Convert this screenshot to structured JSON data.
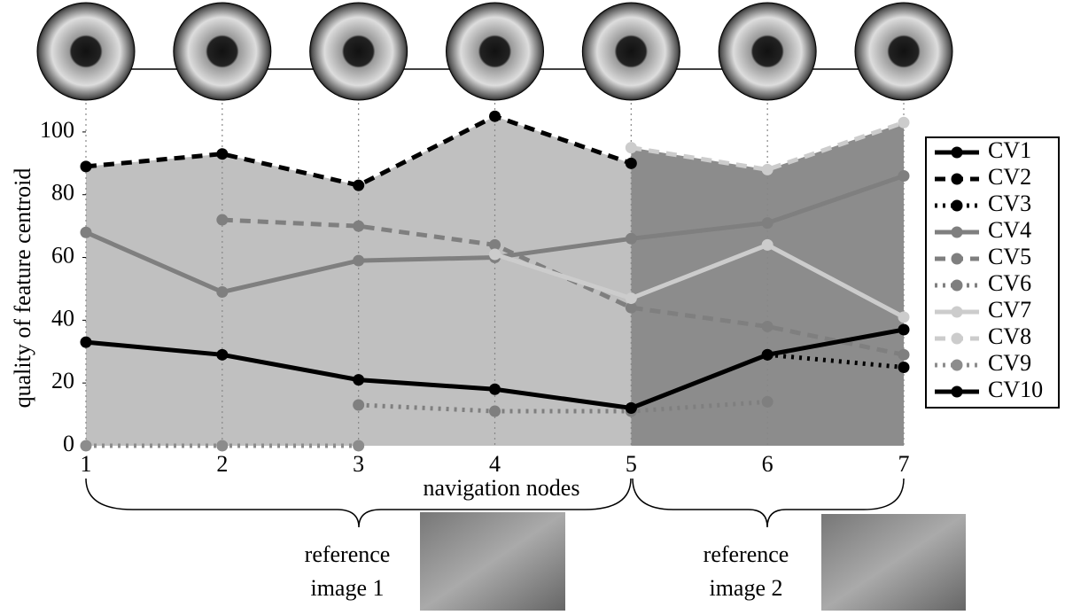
{
  "chart_data": {
    "type": "line",
    "ylabel": "quality of feature centroid",
    "xlabel": "navigation nodes",
    "xlim": [
      1,
      7
    ],
    "xticks": [
      1,
      2,
      3,
      4,
      5,
      6,
      7
    ],
    "ylim": [
      0,
      110
    ],
    "yticks": [
      0,
      20,
      40,
      60,
      80,
      100
    ],
    "legend": "right",
    "series": [
      {
        "name": "CV1",
        "color": "#000000",
        "style": "solid",
        "x": [
          1,
          2,
          3,
          4,
          5
        ],
        "values": [
          33,
          29,
          21,
          18,
          12
        ]
      },
      {
        "name": "CV2",
        "color": "#000000",
        "style": "dashed",
        "area_fill": "#c0c0c0",
        "x": [
          1,
          2,
          3,
          4,
          5
        ],
        "values": [
          89,
          93,
          83,
          105,
          90
        ]
      },
      {
        "name": "CV3",
        "color": "#000000",
        "style": "dotted",
        "x": [
          6,
          7
        ],
        "values": [
          29,
          25
        ]
      },
      {
        "name": "CV4",
        "color": "#7f7f7f",
        "style": "solid",
        "x": [
          1,
          2,
          3,
          4,
          5,
          6,
          7
        ],
        "values": [
          68,
          49,
          59,
          60,
          66,
          71,
          86
        ]
      },
      {
        "name": "CV5",
        "color": "#7f7f7f",
        "style": "dashed",
        "x": [
          2,
          3,
          4,
          5,
          6,
          7
        ],
        "values": [
          72,
          70,
          64,
          44,
          38,
          29
        ]
      },
      {
        "name": "CV6",
        "color": "#7f7f7f",
        "style": "dotted",
        "x": [
          3,
          4,
          5,
          6
        ],
        "values": [
          13,
          11,
          11,
          14
        ]
      },
      {
        "name": "CV7",
        "color": "#cccccc",
        "style": "solid",
        "x": [
          4,
          5,
          6,
          7
        ],
        "values": [
          61,
          47,
          64,
          41
        ]
      },
      {
        "name": "CV8",
        "color": "#cccccc",
        "style": "dashed",
        "area_fill": "#8c8c8c",
        "x": [
          5,
          6,
          7
        ],
        "values": [
          95,
          88,
          103
        ]
      },
      {
        "name": "CV9",
        "color": "#8c8c8c",
        "style": "dotted",
        "x": [
          1,
          2,
          3
        ],
        "values": [
          0,
          0,
          0
        ]
      },
      {
        "name": "CV10",
        "color": "#000000",
        "style": "solid",
        "x": [
          5,
          6,
          7
        ],
        "values": [
          12,
          29,
          37
        ]
      }
    ],
    "annotations": [
      "reference image 1",
      "reference image 2"
    ]
  }
}
